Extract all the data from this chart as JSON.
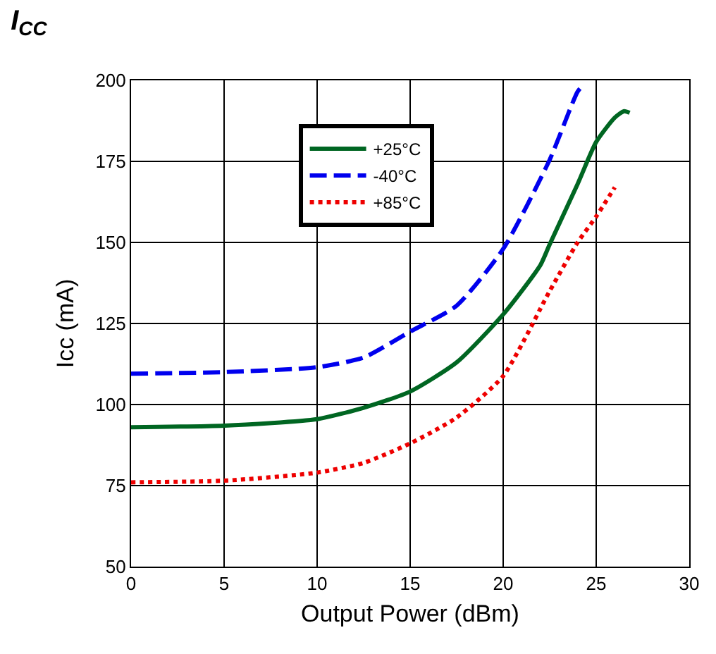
{
  "chart_data": {
    "type": "line",
    "title": "I$_{CC}$",
    "xlabel": "Output Power (dBm)",
    "ylabel": "Icc (mA)",
    "xlim": [
      0,
      30
    ],
    "xticks": [
      0,
      5,
      10,
      15,
      20,
      25,
      30
    ],
    "ylim": [
      50,
      200
    ],
    "yticks": [
      50,
      75,
      100,
      125,
      150,
      175,
      200
    ],
    "grid": true,
    "legend": "top",
    "marker": "none",
    "series": [
      {
        "name": "+25°C",
        "color": "#006622",
        "line_style": "solid",
        "x": [
          0,
          5,
          10,
          12.5,
          15,
          17.5,
          20,
          22,
          22.5,
          24,
          25,
          26,
          26.5,
          26.8
        ],
        "values": [
          93,
          93.5,
          95.5,
          99,
          104,
          113,
          127.8,
          143,
          149.4,
          168,
          181,
          188.5,
          190.5,
          190
        ]
      },
      {
        "name": "-40°C",
        "color": "#0000ee",
        "line_style": "dashed",
        "x": [
          0,
          5,
          10,
          12.5,
          15,
          17.5,
          20,
          22.5,
          24,
          24.3
        ],
        "values": [
          109.5,
          110,
          111.5,
          114.5,
          122.5,
          130.5,
          148,
          175.5,
          196.5,
          198.5
        ]
      },
      {
        "name": "+85°C",
        "color": "#ee0000",
        "line_style": "dotted",
        "x": [
          0,
          5,
          10,
          12.5,
          15,
          17.5,
          20,
          22.5,
          24,
          25,
          26
        ],
        "values": [
          76,
          76.5,
          79,
          82,
          88,
          96,
          108.8,
          135,
          150,
          158,
          167
        ]
      }
    ]
  }
}
